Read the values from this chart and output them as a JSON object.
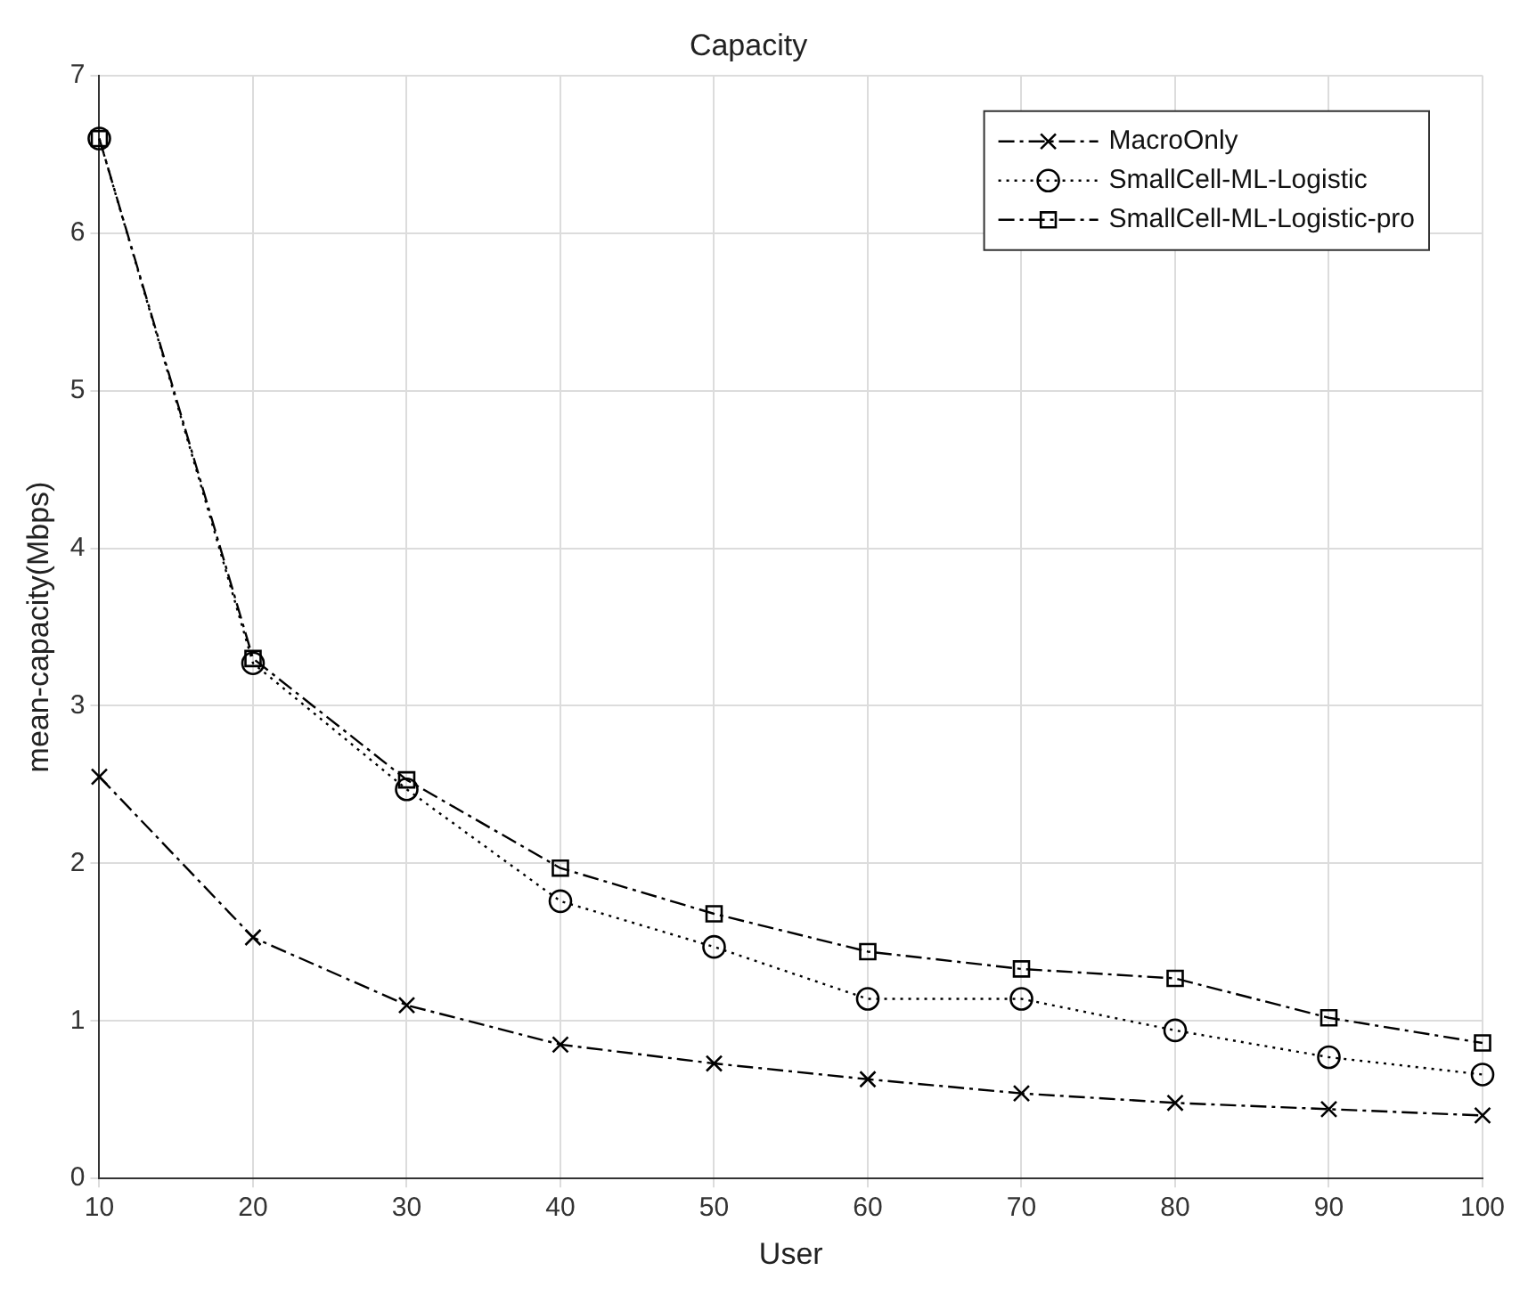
{
  "chart_data": {
    "type": "line",
    "title": "Capacity",
    "xlabel": "User",
    "ylabel": "mean-capacity(Mbps)",
    "x": [
      10,
      20,
      30,
      40,
      50,
      60,
      70,
      80,
      90,
      100
    ],
    "series": [
      {
        "name": "MacroOnly",
        "color": "#000000",
        "marker": "cross",
        "line_style": "dashed",
        "values": [
          2.55,
          1.53,
          1.1,
          0.85,
          0.73,
          0.63,
          0.54,
          0.48,
          0.44,
          0.4
        ]
      },
      {
        "name": "SmallCell-ML-Logistic",
        "color": "#000000",
        "marker": "circle",
        "line_style": "dotted",
        "values": [
          6.6,
          3.27,
          2.47,
          1.76,
          1.47,
          1.14,
          1.14,
          0.94,
          0.77,
          0.66
        ]
      },
      {
        "name": "SmallCell-ML-Logistic-pro",
        "color": "#000000",
        "marker": "square",
        "line_style": "dashed",
        "values": [
          6.6,
          3.3,
          2.53,
          1.97,
          1.68,
          1.44,
          1.33,
          1.27,
          1.02,
          0.86
        ]
      }
    ],
    "xlim": [
      10,
      100
    ],
    "xticks": [
      10,
      20,
      30,
      40,
      50,
      60,
      70,
      80,
      90,
      100
    ],
    "ylim": [
      0,
      7
    ],
    "yticks": [
      0,
      1,
      2,
      3,
      4,
      5,
      6,
      7
    ],
    "grid": true,
    "legend": "top right"
  }
}
